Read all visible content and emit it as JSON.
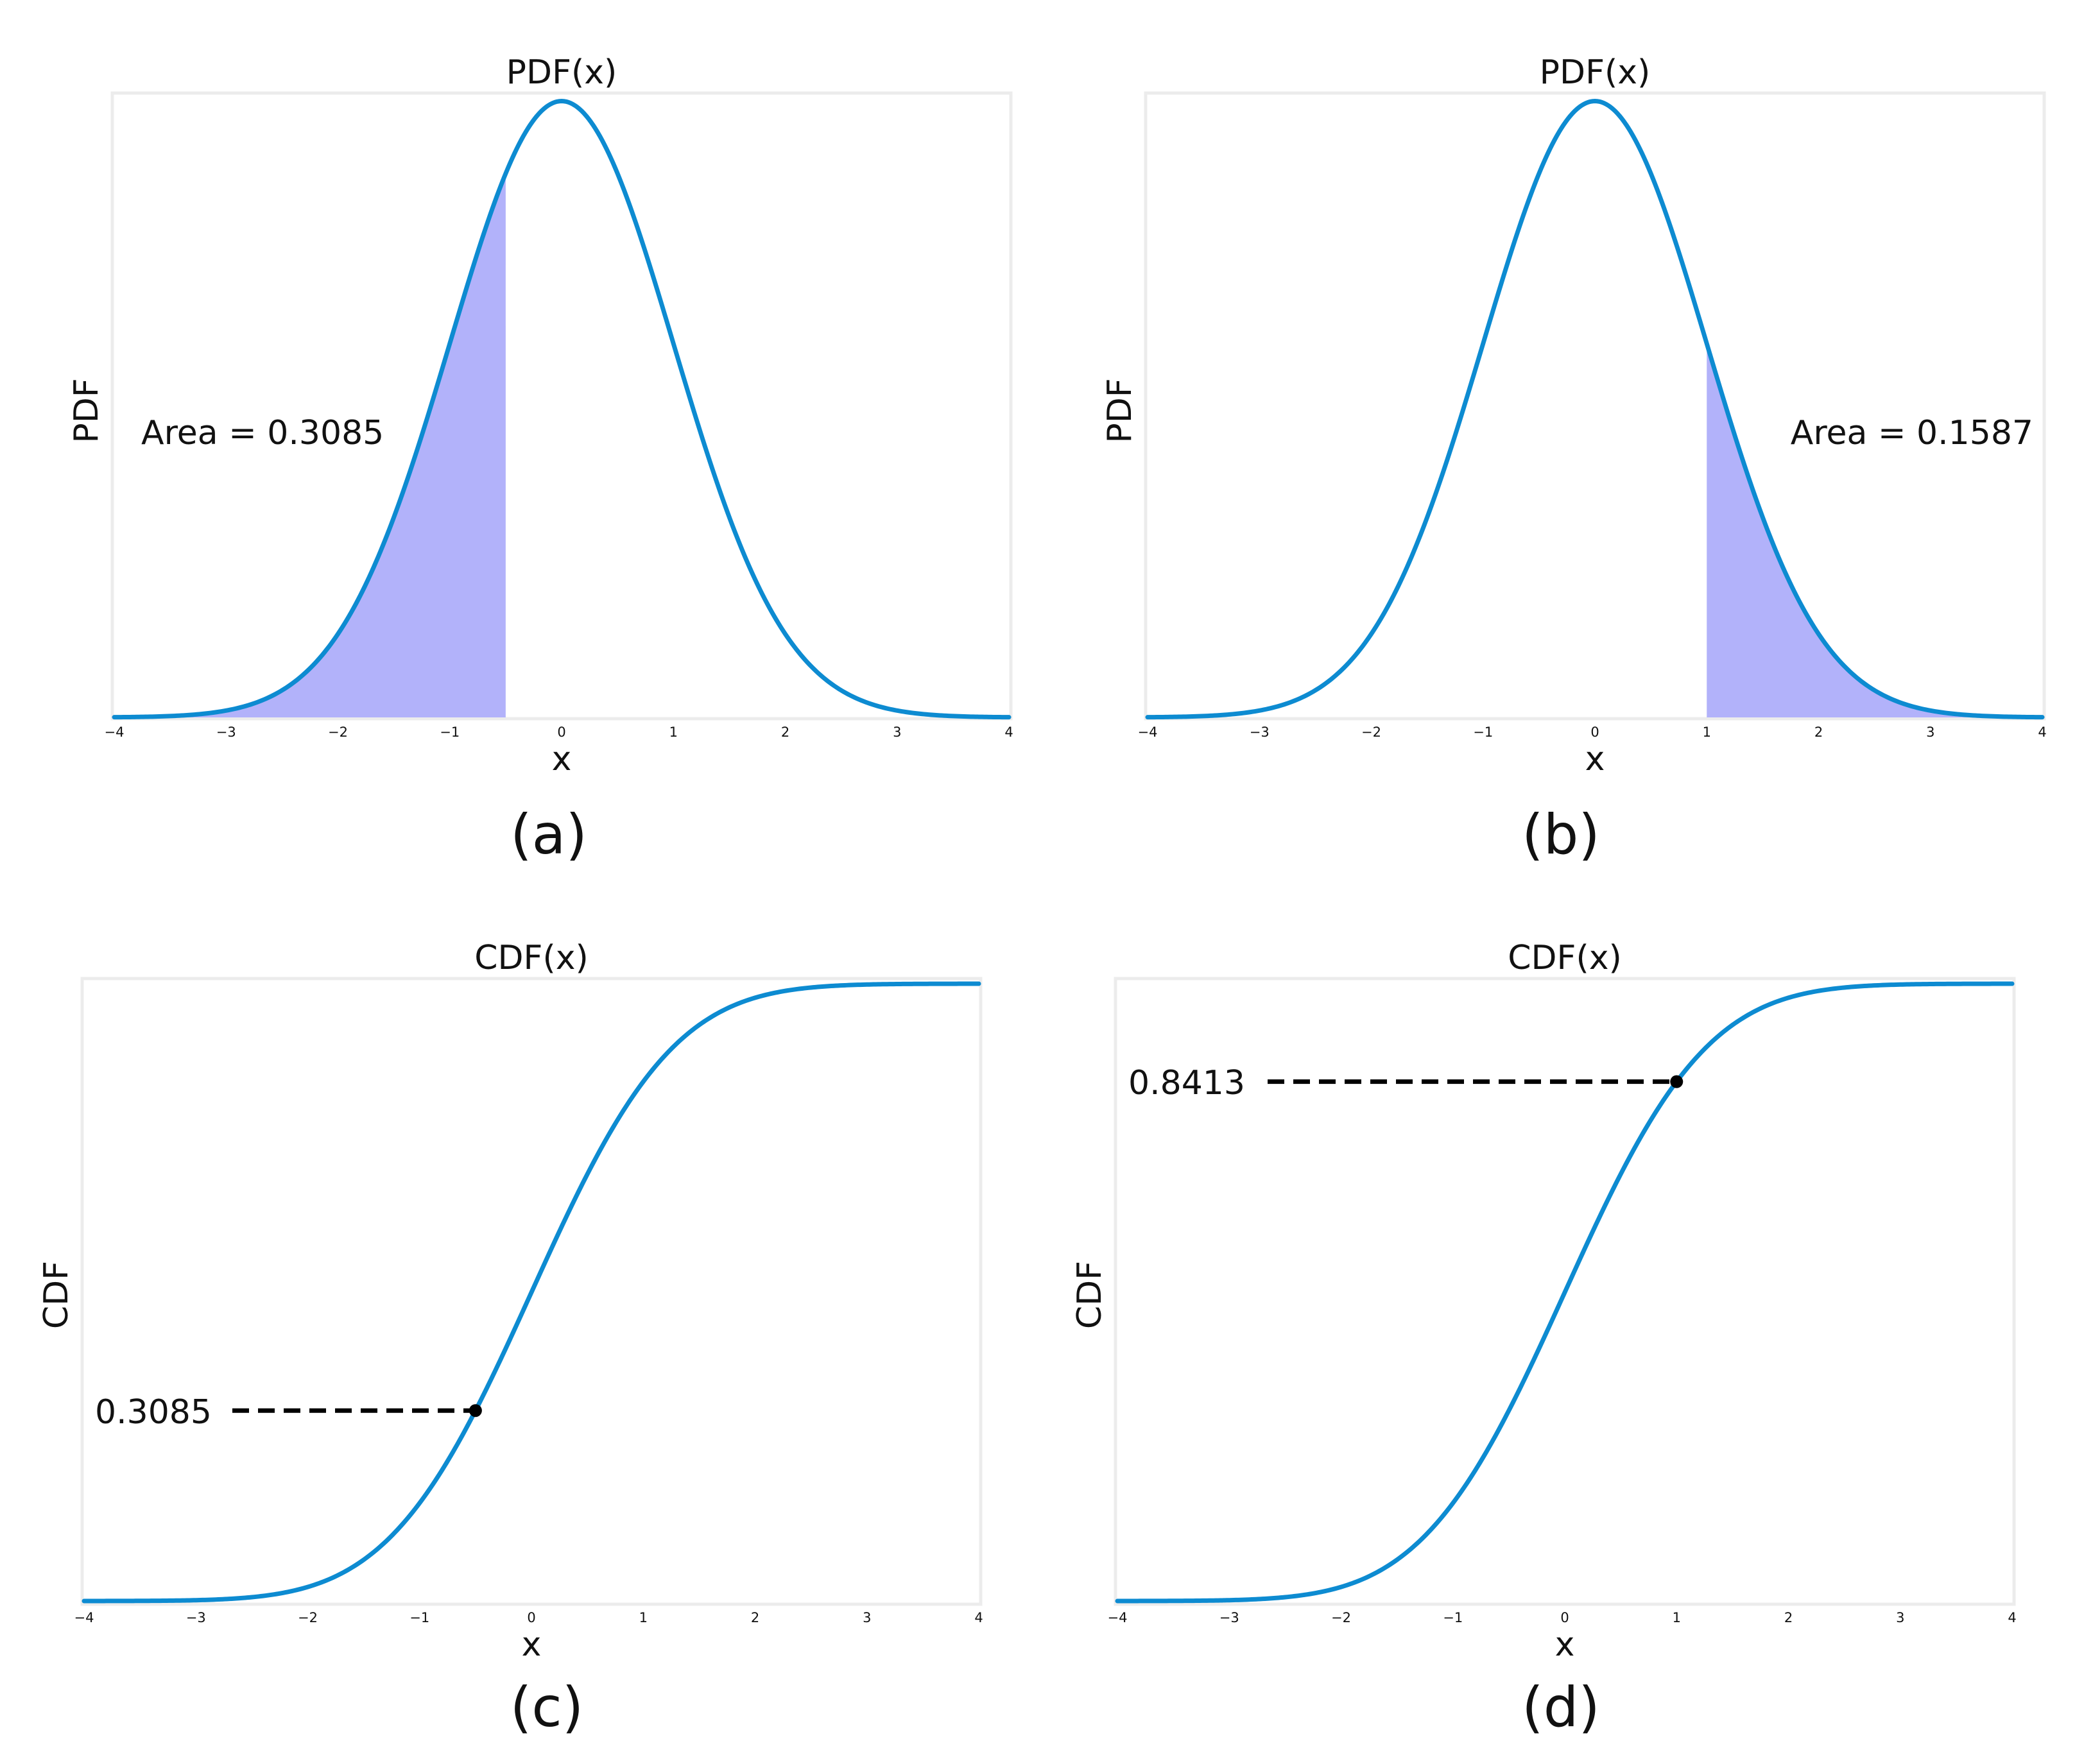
{
  "chart_data": [
    {
      "id": "a",
      "type": "area",
      "function": "normal_pdf",
      "mean": 0,
      "sd": 1,
      "title": "PDF(x)",
      "xlabel": "x",
      "ylabel": "PDF",
      "xlim": [
        -4,
        4
      ],
      "ylim": [
        0,
        0.4
      ],
      "xticks": [
        -4,
        -3,
        -2,
        -1,
        0,
        1,
        2,
        3,
        4
      ],
      "xtick_labels": [
        "−4",
        "−3",
        "−2",
        "−1",
        "0",
        "1",
        "2",
        "3",
        "4"
      ],
      "shaded_region": [
        -4,
        -0.5
      ],
      "annotation": "Area = 0.3085",
      "caption": "(a)",
      "line_color": "#0d8bd1",
      "fill_color": "#b2b2fa"
    },
    {
      "id": "b",
      "type": "area",
      "function": "normal_pdf",
      "mean": 0,
      "sd": 1,
      "title": "PDF(x)",
      "xlabel": "x",
      "ylabel": "PDF",
      "xlim": [
        -4,
        4
      ],
      "ylim": [
        0,
        0.4
      ],
      "xticks": [
        -4,
        -3,
        -2,
        -1,
        0,
        1,
        2,
        3,
        4
      ],
      "xtick_labels": [
        "−4",
        "−3",
        "−2",
        "−1",
        "0",
        "1",
        "2",
        "3",
        "4"
      ],
      "shaded_region": [
        1,
        4
      ],
      "annotation": "Area = 0.1587",
      "caption": "(b)",
      "line_color": "#0d8bd1",
      "fill_color": "#b2b2fa"
    },
    {
      "id": "c",
      "type": "line",
      "function": "normal_cdf",
      "mean": 0,
      "sd": 1,
      "title": "CDF(x)",
      "xlabel": "x",
      "ylabel": "CDF",
      "xlim": [
        -4,
        4
      ],
      "ylim": [
        0,
        1
      ],
      "xticks": [
        -4,
        -3,
        -2,
        -1,
        0,
        1,
        2,
        3,
        4
      ],
      "xtick_labels": [
        "−4",
        "−3",
        "−2",
        "−1",
        "0",
        "1",
        "2",
        "3",
        "4"
      ],
      "marked_point": {
        "x": -0.5,
        "y": 0.3085
      },
      "annotation": "0.3085",
      "caption": "(c)",
      "line_color": "#0d8bd1"
    },
    {
      "id": "d",
      "type": "line",
      "function": "normal_cdf",
      "mean": 0,
      "sd": 1,
      "title": "CDF(x)",
      "xlabel": "x",
      "ylabel": "CDF",
      "xlim": [
        -4,
        4
      ],
      "ylim": [
        0,
        1
      ],
      "xticks": [
        -4,
        -3,
        -2,
        -1,
        0,
        1,
        2,
        3,
        4
      ],
      "xtick_labels": [
        "−4",
        "−3",
        "−2",
        "−1",
        "0",
        "1",
        "2",
        "3",
        "4"
      ],
      "marked_point": {
        "x": 1,
        "y": 0.8413
      },
      "annotation": "0.8413",
      "caption": "(d)",
      "line_color": "#0d8bd1"
    }
  ]
}
